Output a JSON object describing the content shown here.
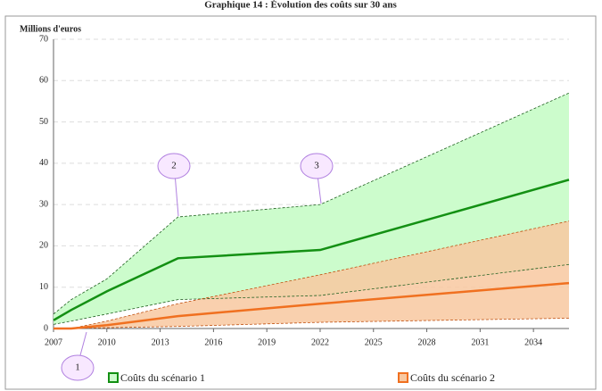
{
  "chart_data": {
    "type": "band-line",
    "title": "Graphique 14 : Évolution des coûts sur 30 ans",
    "y_label": "Millions d'euros",
    "x": [
      2007,
      2008,
      2010,
      2014,
      2022,
      2036
    ],
    "xlim": [
      2007,
      2036
    ],
    "xticks": [
      2007,
      2010,
      2013,
      2016,
      2019,
      2022,
      2025,
      2028,
      2031,
      2034
    ],
    "ylim": [
      0,
      70
    ],
    "yticks": [
      0,
      10,
      20,
      30,
      40,
      50,
      60,
      70
    ],
    "grid": true,
    "series": [
      {
        "name": "Coûts du scénario 1",
        "color": "#139013",
        "fill": "#ccfccc",
        "values": [
          2,
          4.5,
          9,
          17,
          19,
          36
        ],
        "upper": [
          3.5,
          7,
          12,
          27,
          30,
          57
        ],
        "lower": [
          1,
          1.8,
          3.5,
          7,
          8,
          15.5
        ]
      },
      {
        "name": "Coûts du scénario 2",
        "color": "#f07020",
        "fill": "#f8c8a0",
        "values": [
          0,
          0,
          0.8,
          3,
          6,
          11
        ],
        "upper": [
          0,
          0,
          1.8,
          6,
          13,
          26
        ],
        "lower": [
          0,
          0,
          0.2,
          0.5,
          1.5,
          2.5
        ]
      }
    ],
    "annotations": [
      "1",
      "2",
      "3"
    ]
  }
}
